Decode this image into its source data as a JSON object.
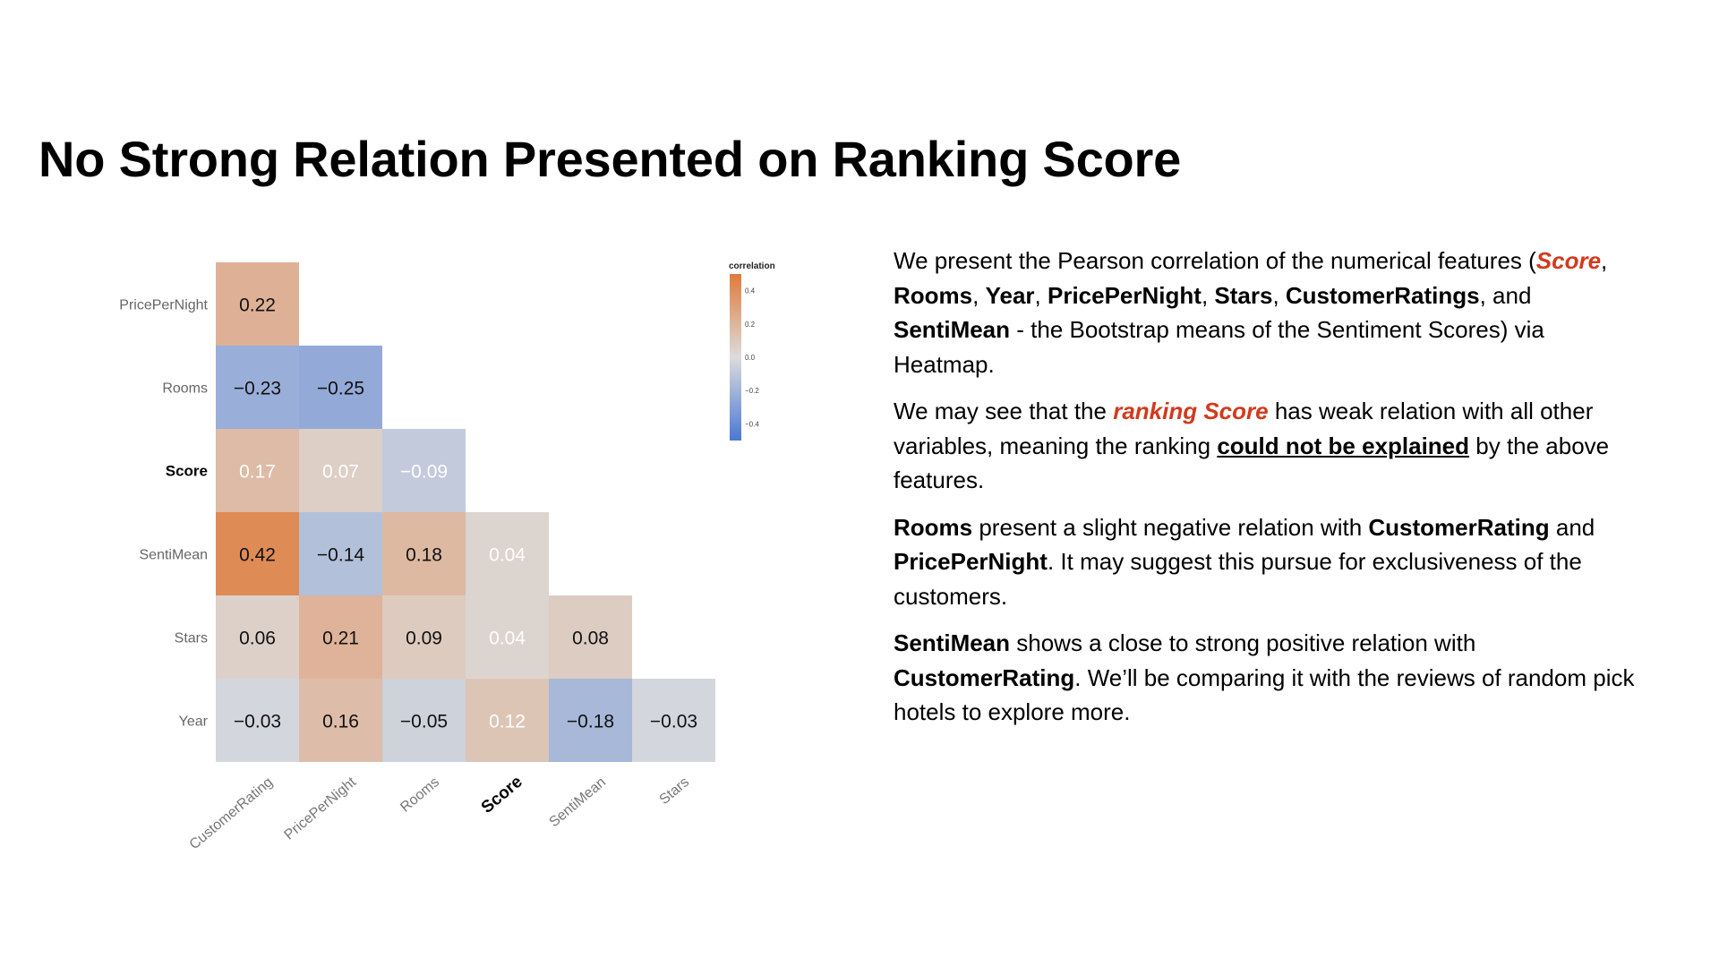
{
  "title": "No Strong Relation Presented on Ranking Score",
  "chart_data": {
    "type": "heatmap",
    "legend_title": "correlation",
    "legend_ticks": [
      "0.4",
      "0.2",
      "0.0",
      "−0.2",
      "−0.4"
    ],
    "legend_tick_values": [
      0.4,
      0.2,
      0.0,
      -0.2,
      -0.4
    ],
    "legend_range": [
      -0.5,
      0.5
    ],
    "legend_placement": "top-right",
    "colors": {
      "negative": "#4a78d4",
      "neutral": "#dcdcdc",
      "positive": "#e07b3c"
    },
    "columns": [
      "CustomerRating",
      "PricePerNight",
      "Rooms",
      "Score",
      "SentiMean",
      "Stars"
    ],
    "rows": [
      "PricePerNight",
      "Rooms",
      "Score",
      "SentiMean",
      "Stars",
      "Year"
    ],
    "highlight_label": "Score",
    "values": [
      [
        0.22,
        null,
        null,
        null,
        null,
        null
      ],
      [
        -0.23,
        -0.25,
        null,
        null,
        null,
        null
      ],
      [
        0.17,
        0.07,
        -0.09,
        null,
        null,
        null
      ],
      [
        0.42,
        -0.14,
        0.18,
        0.04,
        null,
        null
      ],
      [
        0.06,
        0.21,
        0.09,
        0.04,
        0.08,
        null
      ],
      [
        -0.03,
        0.16,
        -0.05,
        0.12,
        -0.18,
        -0.03
      ]
    ]
  },
  "paragraphs": [
    [
      {
        "t": "We present the Pearson correlation of the numerical features ("
      },
      {
        "t": "Score",
        "s": "red"
      },
      {
        "t": ", "
      },
      {
        "t": "Rooms",
        "s": "b"
      },
      {
        "t": ", "
      },
      {
        "t": "Year",
        "s": "b"
      },
      {
        "t": ", "
      },
      {
        "t": "PricePerNight",
        "s": "b"
      },
      {
        "t": ", "
      },
      {
        "t": "Stars",
        "s": "b"
      },
      {
        "t": ", "
      },
      {
        "t": "CustomerRatings",
        "s": "b"
      },
      {
        "t": ", and "
      },
      {
        "t": "SentiMean",
        "s": "b"
      },
      {
        "t": " - the Bootstrap means of the Sentiment Scores) via Heatmap."
      }
    ],
    [
      {
        "t": "We may see that the "
      },
      {
        "t": "ranking Score",
        "s": "red"
      },
      {
        "t": " has weak relation with all other variables, meaning the ranking "
      },
      {
        "t": "could not be explained",
        "s": "ul"
      },
      {
        "t": " by the above features."
      }
    ],
    [
      {
        "t": "Rooms",
        "s": "b"
      },
      {
        "t": " present a slight negative relation with "
      },
      {
        "t": "CustomerRating",
        "s": "b"
      },
      {
        "t": " and "
      },
      {
        "t": "PricePerNight",
        "s": "b"
      },
      {
        "t": ". It may suggest this pursue for exclusiveness of the customers."
      }
    ],
    [
      {
        "t": "SentiMean",
        "s": "b"
      },
      {
        "t": " shows a close to strong positive relation with "
      },
      {
        "t": "CustomerRating",
        "s": "b"
      },
      {
        "t": ". We’ll be comparing it with the reviews of random pick hotels to explore more."
      }
    ]
  ]
}
